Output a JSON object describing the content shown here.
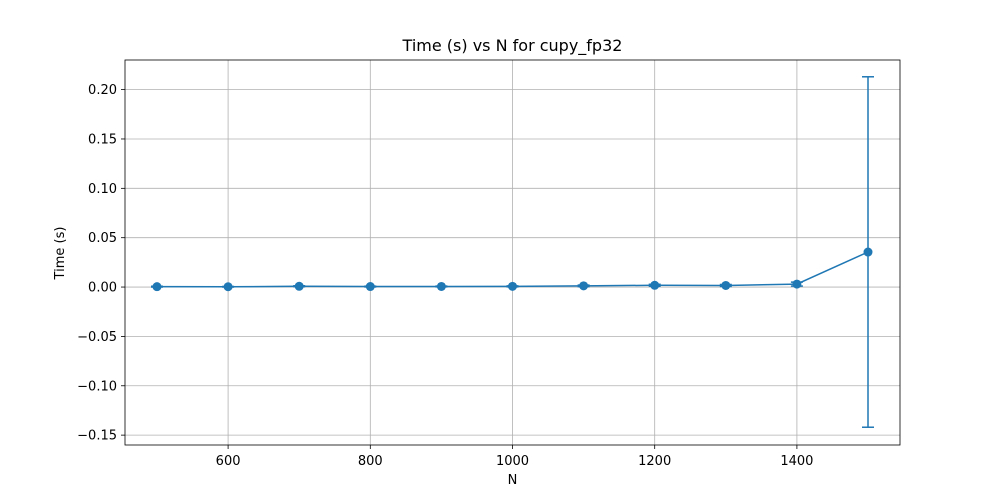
{
  "chart_data": {
    "type": "line",
    "title": "Time (s) vs N for cupy_fp32",
    "xlabel": "N",
    "ylabel": "Time (s)",
    "xlim": [
      455,
      1545
    ],
    "ylim": [
      -0.16,
      0.23
    ],
    "xticks": [
      600,
      800,
      1000,
      1200,
      1400
    ],
    "yticks": [
      -0.15,
      -0.1,
      -0.05,
      0.0,
      0.05,
      0.1,
      0.15,
      0.2
    ],
    "xtick_labels": [
      "600",
      "800",
      "1000",
      "1200",
      "1400"
    ],
    "ytick_labels": [
      "−0.15",
      "−0.10",
      "−0.05",
      "0.00",
      "0.05",
      "0.10",
      "0.15",
      "0.20"
    ],
    "grid": true,
    "color": "#1f77b4",
    "series": [
      {
        "x": [
          500,
          600,
          700,
          800,
          900,
          1000,
          1100,
          1200,
          1300,
          1400,
          1500
        ],
        "y": [
          0.0004,
          0.0003,
          0.0008,
          0.0005,
          0.0006,
          0.0007,
          0.0012,
          0.0018,
          0.0016,
          0.003,
          0.0355
        ],
        "yerr": [
          0.0004,
          0.0003,
          0.0005,
          0.0004,
          0.0004,
          0.0005,
          0.0008,
          0.001,
          0.001,
          0.002,
          0.1775
        ]
      }
    ]
  }
}
